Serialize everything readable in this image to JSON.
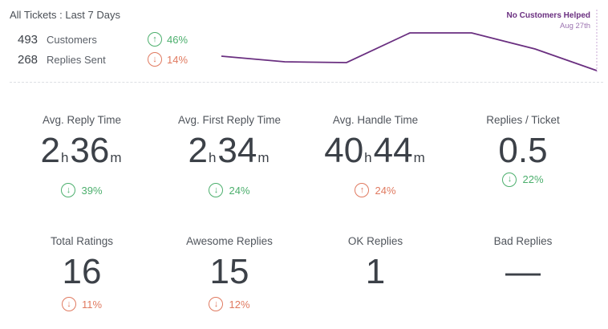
{
  "header": {
    "title": "All Tickets : Last 7 Days"
  },
  "summary": [
    {
      "value": "493",
      "label": "Customers",
      "change": "46%",
      "direction": "up"
    },
    {
      "value": "268",
      "label": "Replies Sent",
      "change": "14%",
      "direction": "down"
    }
  ],
  "sparkline": {
    "tooltip_title": "No Customers Helped",
    "tooltip_date": "Aug 27th",
    "line_color": "#6a2f80"
  },
  "metrics_row1": [
    {
      "label": "Avg. Reply Time",
      "hours": "2",
      "hours_unit": "h",
      "minutes": "36",
      "minutes_unit": "m",
      "change": "39%",
      "direction": "down",
      "tone": "good"
    },
    {
      "label": "Avg. First Reply Time",
      "hours": "2",
      "hours_unit": "h",
      "minutes": "34",
      "minutes_unit": "m",
      "change": "24%",
      "direction": "down",
      "tone": "good"
    },
    {
      "label": "Avg. Handle Time",
      "hours": "40",
      "hours_unit": "h",
      "minutes": "44",
      "minutes_unit": "m",
      "change": "24%",
      "direction": "up",
      "tone": "bad"
    },
    {
      "label": "Replies / Ticket",
      "value": "0.5",
      "change": "22%",
      "direction": "down",
      "tone": "good"
    }
  ],
  "metrics_row2": [
    {
      "label": "Total Ratings",
      "value": "16",
      "change": "11%",
      "direction": "down",
      "tone": "bad"
    },
    {
      "label": "Awesome Replies",
      "value": "15",
      "change": "12%",
      "direction": "down",
      "tone": "bad"
    },
    {
      "label": "OK Replies",
      "value": "1"
    },
    {
      "label": "Bad Replies",
      "value": "—"
    }
  ],
  "colors": {
    "positive": "#4caf6d",
    "negative": "#e07a60",
    "accent": "#6a2f80"
  },
  "icons": {
    "up": "arrow-up-circle-icon",
    "down": "arrow-down-circle-icon"
  }
}
